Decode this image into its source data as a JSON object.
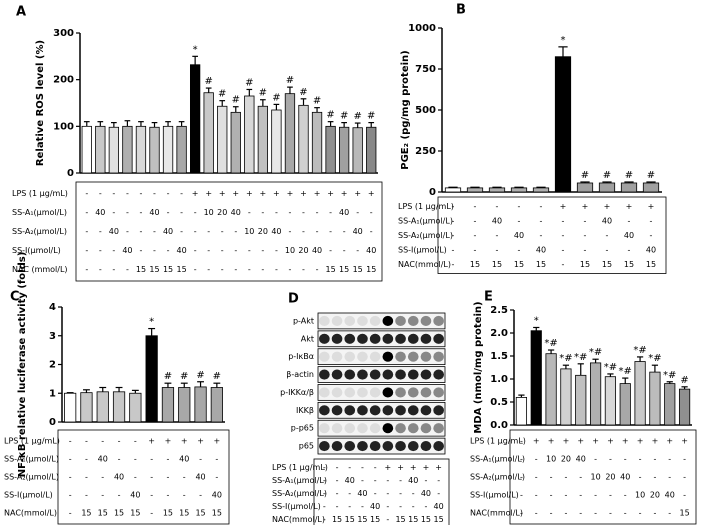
{
  "chart_data": [
    {
      "type": "bar",
      "title": "A",
      "ylabel": "Relative ROS level (%)",
      "ylim": [
        0,
        300
      ],
      "yticks": [
        0,
        100,
        200,
        300
      ],
      "values": [
        100,
        100,
        98,
        100,
        100,
        98,
        100,
        100,
        232,
        172,
        143,
        130,
        165,
        143,
        135,
        170,
        145,
        130,
        100,
        98,
        97,
        98
      ],
      "errors": [
        10,
        10,
        10,
        12,
        10,
        10,
        10,
        10,
        18,
        10,
        12,
        12,
        14,
        14,
        12,
        14,
        14,
        10,
        10,
        10,
        10,
        10
      ],
      "annotations": [
        null,
        null,
        null,
        null,
        null,
        null,
        null,
        null,
        "*",
        "#",
        "#",
        "#",
        "#",
        "#",
        "#",
        "#",
        "#",
        "#",
        "#",
        "#",
        "#",
        "#"
      ],
      "colors": [
        "#ffffff",
        "#c8c8c8",
        "#e0e0e0",
        "#b0b0b0",
        "#d8d8d8",
        "#c0c0c0",
        "#e8e8e8",
        "#a8a8a8",
        "#000000",
        "#c8c8c8",
        "#e0e0e0",
        "#b0b0b0",
        "#d8d8d8",
        "#c0c0c0",
        "#e8e8e8",
        "#a8a8a8",
        "#d0d0d0",
        "#bcbcbc",
        "#909090",
        "#a0a0a0",
        "#b8b8b8",
        "#888888"
      ],
      "treatments": [
        {
          "label": "LPS (1 μg/mL)",
          "cells": [
            "-",
            "-",
            "-",
            "-",
            "-",
            "-",
            "-",
            "-",
            "+",
            "+",
            "+",
            "+",
            "+",
            "+",
            "+",
            "+",
            "+",
            "+",
            "+",
            "+",
            "+",
            "+"
          ]
        },
        {
          "label": "SS-A₁(μmol/L)",
          "cells": [
            "-",
            "40",
            "-",
            "-",
            "-",
            "40",
            "-",
            "-",
            "-",
            "10",
            "20",
            "40",
            "-",
            "-",
            "-",
            "-",
            "-",
            "-",
            "-",
            "40",
            "-",
            "-"
          ]
        },
        {
          "label": "SS-A₂(μmol/L)",
          "cells": [
            "-",
            "-",
            "40",
            "-",
            "-",
            "-",
            "40",
            "-",
            "-",
            "-",
            "-",
            "-",
            "10",
            "20",
            "40",
            "-",
            "-",
            "-",
            "-",
            "-",
            "40",
            "-"
          ]
        },
        {
          "label": "SS-I(μmol/L)",
          "cells": [
            "-",
            "-",
            "-",
            "40",
            "-",
            "-",
            "-",
            "40",
            "-",
            "-",
            "-",
            "-",
            "-",
            "-",
            "-",
            "10",
            "20",
            "40",
            "-",
            "-",
            "-",
            "40"
          ]
        },
        {
          "label": "NAC (mmol/L)",
          "cells": [
            "-",
            "-",
            "-",
            "-",
            "15",
            "15",
            "15",
            "15",
            "-",
            "-",
            "-",
            "-",
            "-",
            "-",
            "-",
            "-",
            "-",
            "-",
            "15",
            "15",
            "15",
            "15"
          ]
        }
      ]
    },
    {
      "type": "bar",
      "title": "B",
      "ylabel": "PGE₂ (pg/mg protein)",
      "ylim": [
        0,
        1000
      ],
      "yticks": [
        0,
        250,
        500,
        750,
        1000
      ],
      "values": [
        25,
        25,
        25,
        25,
        25,
        825,
        55,
        55,
        55,
        55
      ],
      "errors": [
        4,
        4,
        4,
        4,
        4,
        60,
        6,
        6,
        6,
        6
      ],
      "annotations": [
        null,
        null,
        null,
        null,
        null,
        "*",
        "#",
        "#",
        "#",
        "#"
      ],
      "colors": [
        "#ffffff",
        "#b0b0b0",
        "#b0b0b0",
        "#b0b0b0",
        "#b0b0b0",
        "#000000",
        "#a0a0a0",
        "#a0a0a0",
        "#a0a0a0",
        "#a0a0a0"
      ],
      "treatments": [
        {
          "label": "LPS (1 μg/mL)",
          "cells": [
            "-",
            "-",
            "-",
            "-",
            "-",
            "+",
            "+",
            "+",
            "+",
            "+"
          ]
        },
        {
          "label": "SS-A₁(μmol/L)",
          "cells": [
            "-",
            "-",
            "40",
            "-",
            "-",
            "-",
            "-",
            "40",
            "-",
            "-"
          ]
        },
        {
          "label": "SS-A₂(μmol/L)",
          "cells": [
            "-",
            "-",
            "-",
            "40",
            "-",
            "-",
            "-",
            "-",
            "40",
            "-"
          ]
        },
        {
          "label": "SS-I(μmol/L)",
          "cells": [
            "-",
            "-",
            "-",
            "-",
            "40",
            "-",
            "-",
            "-",
            "-",
            "40"
          ]
        },
        {
          "label": "NAC(mmol/L)",
          "cells": [
            "-",
            "15",
            "15",
            "15",
            "15",
            "-",
            "15",
            "15",
            "15",
            "15"
          ]
        }
      ]
    },
    {
      "type": "bar",
      "title": "C",
      "ylabel": "NF-κB relative luciferase activity (folds)",
      "ylim": [
        0,
        4
      ],
      "yticks": [
        0,
        1,
        2,
        3,
        4
      ],
      "values": [
        1.0,
        1.02,
        1.05,
        1.05,
        1.0,
        3.0,
        1.2,
        1.2,
        1.22,
        1.2
      ],
      "errors": [
        0.02,
        0.1,
        0.15,
        0.15,
        0.1,
        0.25,
        0.15,
        0.15,
        0.18,
        0.15
      ],
      "annotations": [
        null,
        null,
        null,
        null,
        null,
        "*",
        "#",
        "#",
        "#",
        "#"
      ],
      "colors": [
        "#ffffff",
        "#c8c8c8",
        "#c8c8c8",
        "#c8c8c8",
        "#c8c8c8",
        "#000000",
        "#a8a8a8",
        "#a8a8a8",
        "#a8a8a8",
        "#a8a8a8"
      ],
      "treatments": [
        {
          "label": "LPS (1 μg/mL)",
          "cells": [
            "-",
            "-",
            "-",
            "-",
            "-",
            "+",
            "+",
            "+",
            "+",
            "+"
          ]
        },
        {
          "label": "SS-A₁(μmol/L)",
          "cells": [
            "-",
            "-",
            "40",
            "-",
            "-",
            "-",
            "-",
            "40",
            "-",
            "-"
          ]
        },
        {
          "label": "SS-A₂(μmol/L)",
          "cells": [
            "-",
            "-",
            "-",
            "40",
            "-",
            "-",
            "-",
            "-",
            "40",
            "-"
          ]
        },
        {
          "label": "SS-I(μmol/L)",
          "cells": [
            "-",
            "-",
            "-",
            "-",
            "40",
            "-",
            "-",
            "-",
            "-",
            "40"
          ]
        },
        {
          "label": "NAC(mmol/L)",
          "cells": [
            "-",
            "15",
            "15",
            "15",
            "15",
            "-",
            "15",
            "15",
            "15",
            "15"
          ]
        }
      ]
    },
    {
      "type": "blot",
      "title": "D",
      "rows": [
        "p-Akt",
        "Akt",
        "p-IκBα",
        "β-actin",
        "p-IKKα/β",
        "IKKβ",
        "p-p65",
        "p65"
      ],
      "treatments": [
        {
          "label": "LPS (1 μg/mL)",
          "cells": [
            "-",
            "-",
            "-",
            "-",
            "-",
            "+",
            "+",
            "+",
            "+",
            "+"
          ]
        },
        {
          "label": "SS-A₁(μmol/L)",
          "cells": [
            "-",
            "-",
            "40",
            "-",
            "-",
            "-",
            "-",
            "40",
            "-",
            "-"
          ]
        },
        {
          "label": "SS-A₂(μmol/L)",
          "cells": [
            "-",
            "-",
            "-",
            "40",
            "-",
            "-",
            "-",
            "-",
            "40",
            "-"
          ]
        },
        {
          "label": "SS-I(μmol/L)",
          "cells": [
            "-",
            "-",
            "-",
            "-",
            "40",
            "-",
            "-",
            "-",
            "-",
            "40"
          ]
        },
        {
          "label": "NAC(mmol/L)",
          "cells": [
            "-",
            "15",
            "15",
            "15",
            "15",
            "-",
            "15",
            "15",
            "15",
            "15"
          ]
        }
      ]
    },
    {
      "type": "bar",
      "title": "E",
      "ylabel": "MDA (nmol/mg protein)",
      "ylim": [
        0,
        2.5
      ],
      "yticks": [
        {
          "value": 0,
          "label": "0.0"
        },
        0.5,
        {
          "value": 1,
          "label": "1.0"
        },
        1.5,
        {
          "value": 2,
          "label": "2.0"
        },
        2.5
      ],
      "values": [
        0.6,
        2.05,
        1.55,
        1.22,
        1.08,
        1.35,
        1.05,
        0.9,
        1.38,
        1.15,
        0.9,
        0.78
      ],
      "errors": [
        0.05,
        0.07,
        0.08,
        0.08,
        0.25,
        0.08,
        0.06,
        0.12,
        0.1,
        0.15,
        0.04,
        0.05
      ],
      "annotations": [
        null,
        "*",
        "*#",
        "*#",
        "*#",
        "*#",
        "*#",
        "*#",
        "*#",
        "*#",
        "*#",
        "#"
      ],
      "colors": [
        "#ffffff",
        "#000000",
        "#b8b8b8",
        "#d0d0d0",
        "#c0c0c0",
        "#b0b0b0",
        "#d8d8d8",
        "#a8a8a8",
        "#c8c8c8",
        "#bcbcbc",
        "#a0a0a0",
        "#909090"
      ],
      "treatments": [
        {
          "label": "LPS (1 μg/mL)",
          "cells": [
            "-",
            "+",
            "+",
            "+",
            "+",
            "+",
            "+",
            "+",
            "+",
            "+",
            "+",
            "+"
          ]
        },
        {
          "label": "SS-A₁(μmol/L)",
          "cells": [
            "-",
            "-",
            "10",
            "20",
            "40",
            "-",
            "-",
            "-",
            "-",
            "-",
            "-",
            "-"
          ]
        },
        {
          "label": "SS-A₂(μmol/L)",
          "cells": [
            "-",
            "-",
            "-",
            "-",
            "-",
            "10",
            "20",
            "40",
            "-",
            "-",
            "-",
            "-"
          ]
        },
        {
          "label": "SS-I(μmol/L)",
          "cells": [
            "-",
            "-",
            "-",
            "-",
            "-",
            "-",
            "-",
            "-",
            "10",
            "20",
            "40",
            "-"
          ]
        },
        {
          "label": "NAC(mmol/L)",
          "cells": [
            "-",
            "-",
            "-",
            "-",
            "-",
            "-",
            "-",
            "-",
            "-",
            "-",
            "-",
            "15"
          ]
        }
      ]
    }
  ]
}
